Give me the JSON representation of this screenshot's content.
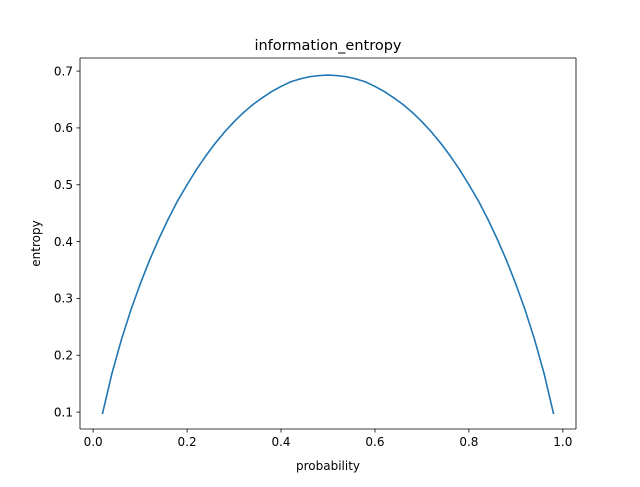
{
  "chart_data": {
    "type": "line",
    "title": "information_entropy",
    "xlabel": "probability",
    "ylabel": "entropy",
    "xlim": [
      -0.028,
      1.028
    ],
    "ylim": [
      0.0703,
      0.723
    ],
    "xticks": [
      0.0,
      0.2,
      0.4,
      0.6,
      0.8,
      1.0
    ],
    "xtick_labels": [
      "0.0",
      "0.2",
      "0.4",
      "0.6",
      "0.8",
      "1.0"
    ],
    "yticks": [
      0.1,
      0.2,
      0.3,
      0.4,
      0.5,
      0.6,
      0.7
    ],
    "ytick_labels": [
      "0.1",
      "0.2",
      "0.3",
      "0.4",
      "0.5",
      "0.6",
      "0.7"
    ],
    "grid": false,
    "legend": "none",
    "series": [
      {
        "color": "#1f77b4",
        "x": [
          0.02,
          0.04,
          0.06,
          0.08,
          0.1,
          0.12,
          0.14,
          0.16,
          0.18,
          0.2,
          0.22,
          0.24,
          0.26,
          0.28,
          0.3,
          0.32,
          0.34,
          0.36,
          0.38,
          0.4,
          0.42,
          0.44,
          0.46,
          0.48,
          0.5,
          0.52,
          0.54,
          0.56,
          0.58,
          0.6,
          0.62,
          0.64,
          0.66,
          0.68,
          0.7,
          0.72,
          0.74,
          0.76,
          0.78,
          0.8,
          0.82,
          0.84,
          0.86,
          0.88,
          0.9,
          0.92,
          0.94,
          0.96,
          0.98
        ],
        "y": [
          0.098,
          0.168,
          0.227,
          0.279,
          0.325,
          0.367,
          0.405,
          0.44,
          0.472,
          0.5,
          0.527,
          0.551,
          0.573,
          0.593,
          0.611,
          0.627,
          0.641,
          0.653,
          0.664,
          0.673,
          0.681,
          0.686,
          0.69,
          0.692,
          0.693,
          0.692,
          0.69,
          0.686,
          0.681,
          0.673,
          0.664,
          0.653,
          0.641,
          0.627,
          0.611,
          0.593,
          0.573,
          0.551,
          0.527,
          0.5,
          0.472,
          0.44,
          0.405,
          0.367,
          0.325,
          0.279,
          0.227,
          0.168,
          0.098
        ]
      }
    ]
  }
}
